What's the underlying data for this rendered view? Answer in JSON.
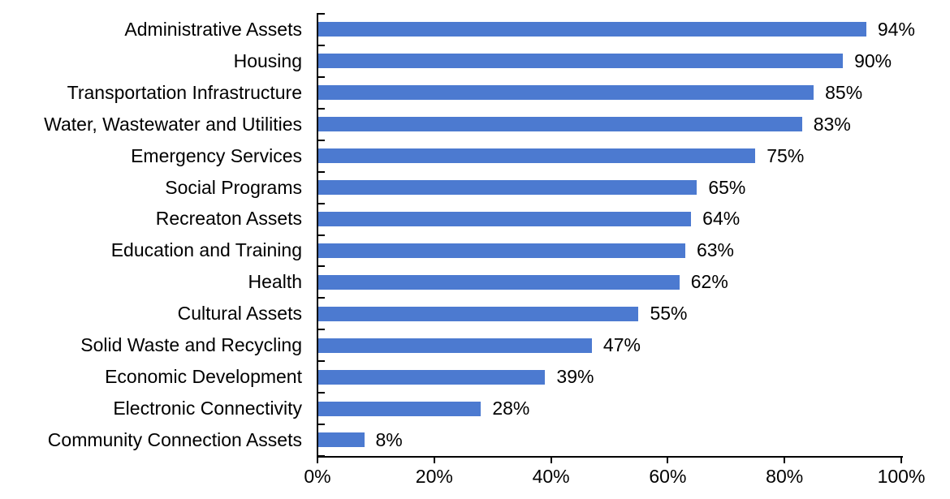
{
  "chart_data": {
    "type": "bar",
    "orientation": "horizontal",
    "title": "",
    "xlabel": "",
    "ylabel": "",
    "categories": [
      "Administrative Assets",
      "Housing",
      "Transportation Infrastructure",
      "Water, Wastewater and Utilities",
      "Emergency Services",
      "Social Programs",
      "Recreaton Assets",
      "Education and Training",
      "Health",
      "Cultural Assets",
      "Solid Waste and Recycling",
      "Economic Development",
      "Electronic Connectivity",
      "Community Connection Assets"
    ],
    "values": [
      94,
      90,
      85,
      83,
      75,
      65,
      64,
      63,
      62,
      55,
      47,
      39,
      28,
      8
    ],
    "value_labels": [
      "94%",
      "90%",
      "85%",
      "83%",
      "75%",
      "65%",
      "64%",
      "63%",
      "62%",
      "55%",
      "47%",
      "39%",
      "28%",
      "8%"
    ],
    "xlim": [
      0,
      100
    ],
    "x_tick_values": [
      0,
      20,
      40,
      60,
      80,
      100
    ],
    "x_tick_labels": [
      "0%",
      "20%",
      "40%",
      "60%",
      "80%",
      "100%"
    ],
    "grid": false,
    "legend": "none",
    "bar_color": "#4C7AD0",
    "axis_color": "#000000",
    "text_color": "#000000"
  }
}
